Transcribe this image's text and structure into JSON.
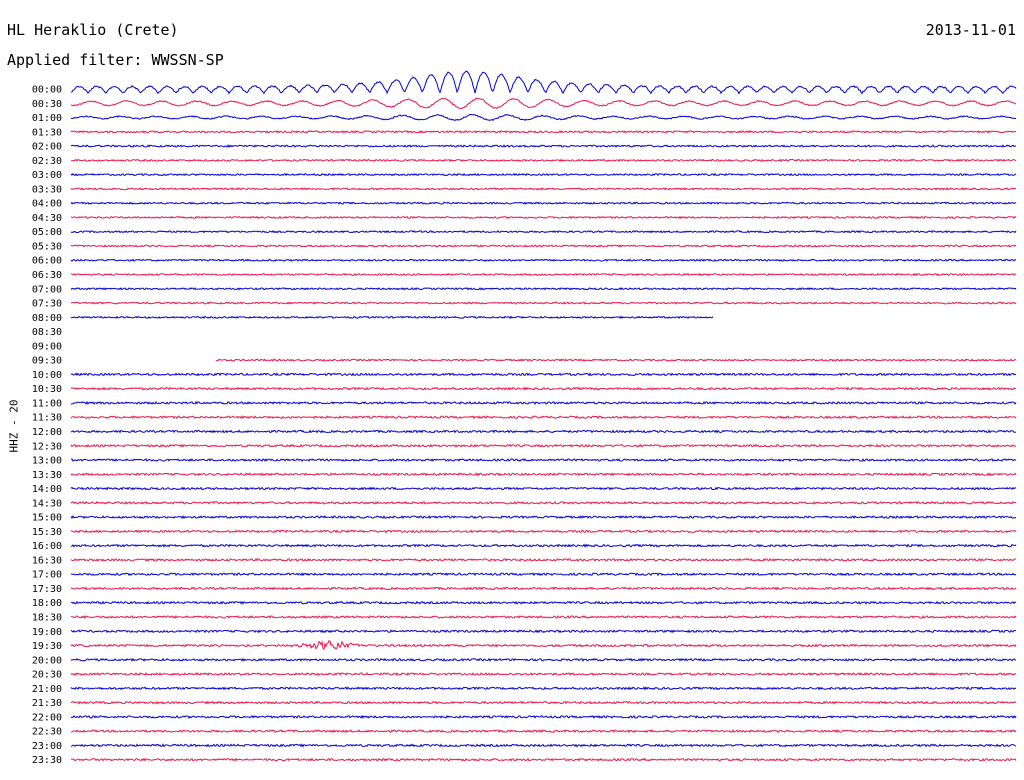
{
  "header": {
    "station": "HL Heraklio (Crete)",
    "date": "2013-11-01",
    "filter": "Applied filter: WWSSN-SP"
  },
  "chart_data": {
    "type": "line",
    "channel_label": "HHZ - 20",
    "row_labels": [
      "00:00",
      "00:30",
      "01:00",
      "01:30",
      "02:00",
      "02:30",
      "03:00",
      "03:30",
      "04:00",
      "04:30",
      "05:00",
      "05:30",
      "06:00",
      "06:30",
      "07:00",
      "07:30",
      "08:00",
      "08:30",
      "09:00",
      "09:30",
      "10:00",
      "10:30",
      "11:00",
      "11:30",
      "12:00",
      "12:30",
      "13:00",
      "13:30",
      "14:00",
      "14:30",
      "15:00",
      "15:30",
      "16:00",
      "16:30",
      "17:00",
      "17:30",
      "18:00",
      "18:30",
      "19:00",
      "19:30",
      "20:00",
      "20:30",
      "21:00",
      "21:30",
      "22:00",
      "22:30",
      "23:00",
      "23:30"
    ],
    "trace_colors": [
      "#0000cc",
      "#e8174a"
    ],
    "trace_minutes": 30,
    "rows": [
      {
        "time": "00:00",
        "start_min": 0,
        "end_min": 30,
        "amp": 1.0,
        "event": "teleseismic"
      },
      {
        "time": "00:30",
        "start_min": 0,
        "end_min": 30,
        "amp": 0.55,
        "event": "coda"
      },
      {
        "time": "01:00",
        "start_min": 0,
        "end_min": 30,
        "amp": 0.3,
        "event": "coda"
      },
      {
        "time": "01:30",
        "start_min": 0,
        "end_min": 30,
        "amp": 0.14
      },
      {
        "time": "02:00",
        "start_min": 0,
        "end_min": 30,
        "amp": 0.14
      },
      {
        "time": "02:30",
        "start_min": 0,
        "end_min": 30,
        "amp": 0.13
      },
      {
        "time": "03:00",
        "start_min": 0,
        "end_min": 30,
        "amp": 0.13
      },
      {
        "time": "03:30",
        "start_min": 0,
        "end_min": 30,
        "amp": 0.13
      },
      {
        "time": "04:00",
        "start_min": 0,
        "end_min": 30,
        "amp": 0.13
      },
      {
        "time": "04:30",
        "start_min": 0,
        "end_min": 30,
        "amp": 0.13
      },
      {
        "time": "05:00",
        "start_min": 0,
        "end_min": 30,
        "amp": 0.13
      },
      {
        "time": "05:30",
        "start_min": 0,
        "end_min": 30,
        "amp": 0.13
      },
      {
        "time": "06:00",
        "start_min": 0,
        "end_min": 30,
        "amp": 0.13
      },
      {
        "time": "06:30",
        "start_min": 0,
        "end_min": 30,
        "amp": 0.13
      },
      {
        "time": "07:00",
        "start_min": 0,
        "end_min": 30,
        "amp": 0.13
      },
      {
        "time": "07:30",
        "start_min": 0,
        "end_min": 30,
        "amp": 0.13
      },
      {
        "time": "08:00",
        "start_min": 0,
        "end_min": 20.4,
        "amp": 0.13
      },
      {
        "time": "08:30",
        "gap": true
      },
      {
        "time": "09:00",
        "gap": true
      },
      {
        "time": "09:30",
        "start_min": 4.6,
        "end_min": 30,
        "amp": 0.13
      },
      {
        "time": "10:00",
        "start_min": 0,
        "end_min": 30,
        "amp": 0.16
      },
      {
        "time": "10:30",
        "start_min": 0,
        "end_min": 30,
        "amp": 0.16
      },
      {
        "time": "11:00",
        "start_min": 0,
        "end_min": 30,
        "amp": 0.16
      },
      {
        "time": "11:30",
        "start_min": 0,
        "end_min": 30,
        "amp": 0.16
      },
      {
        "time": "12:00",
        "start_min": 0,
        "end_min": 30,
        "amp": 0.16
      },
      {
        "time": "12:30",
        "start_min": 0,
        "end_min": 30,
        "amp": 0.16
      },
      {
        "time": "13:00",
        "start_min": 0,
        "end_min": 30,
        "amp": 0.16
      },
      {
        "time": "13:30",
        "start_min": 0,
        "end_min": 30,
        "amp": 0.16
      },
      {
        "time": "14:00",
        "start_min": 0,
        "end_min": 30,
        "amp": 0.16
      },
      {
        "time": "14:30",
        "start_min": 0,
        "end_min": 30,
        "amp": 0.16
      },
      {
        "time": "15:00",
        "start_min": 0,
        "end_min": 30,
        "amp": 0.16
      },
      {
        "time": "15:30",
        "start_min": 0,
        "end_min": 30,
        "amp": 0.16
      },
      {
        "time": "16:00",
        "start_min": 0,
        "end_min": 30,
        "amp": 0.16
      },
      {
        "time": "16:30",
        "start_min": 0,
        "end_min": 30,
        "amp": 0.16
      },
      {
        "time": "17:00",
        "start_min": 0,
        "end_min": 30,
        "amp": 0.16
      },
      {
        "time": "17:30",
        "start_min": 0,
        "end_min": 30,
        "amp": 0.16
      },
      {
        "time": "18:00",
        "start_min": 0,
        "end_min": 30,
        "amp": 0.16
      },
      {
        "time": "18:30",
        "start_min": 0,
        "end_min": 30,
        "amp": 0.16
      },
      {
        "time": "19:00",
        "start_min": 0,
        "end_min": 30,
        "amp": 0.16
      },
      {
        "time": "19:30",
        "start_min": 0,
        "end_min": 30,
        "amp": 0.16,
        "event": "local",
        "event_min": 8.2
      },
      {
        "time": "20:00",
        "start_min": 0,
        "end_min": 30,
        "amp": 0.16
      },
      {
        "time": "20:30",
        "start_min": 0,
        "end_min": 30,
        "amp": 0.16
      },
      {
        "time": "21:00",
        "start_min": 0,
        "end_min": 30,
        "amp": 0.16
      },
      {
        "time": "21:30",
        "start_min": 0,
        "end_min": 30,
        "amp": 0.16
      },
      {
        "time": "22:00",
        "start_min": 0,
        "end_min": 30,
        "amp": 0.16
      },
      {
        "time": "22:30",
        "start_min": 0,
        "end_min": 30,
        "amp": 0.16
      },
      {
        "time": "23:00",
        "start_min": 0,
        "end_min": 30,
        "amp": 0.16
      },
      {
        "time": "23:30",
        "start_min": 0,
        "end_min": 30,
        "amp": 0.16
      }
    ]
  }
}
